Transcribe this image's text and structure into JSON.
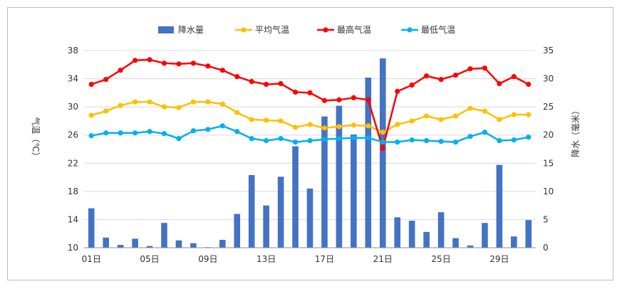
{
  "chart_data": {
    "type": "bar+line",
    "title": "",
    "days": [
      "01日",
      "02日",
      "03日",
      "04日",
      "05日",
      "06日",
      "07日",
      "08日",
      "09日",
      "10日",
      "11日",
      "12日",
      "13日",
      "14日",
      "15日",
      "16日",
      "17日",
      "18日",
      "19日",
      "20日",
      "21日",
      "22日",
      "23日",
      "24日",
      "25日",
      "26日",
      "27日",
      "28日",
      "29日",
      "30日",
      "31日"
    ],
    "x_tick_labels": [
      "01日",
      "05日",
      "09日",
      "13日",
      "17日",
      "21日",
      "25日",
      "29日"
    ],
    "ylabel_left": "气温（℃）",
    "ylabel_right": "降水（毫米）",
    "ylim_left": [
      10,
      38
    ],
    "yticks_left": [
      "10",
      "14",
      "18",
      "22",
      "26",
      "30",
      "34",
      "38"
    ],
    "ylim_right": [
      0,
      35
    ],
    "yticks_right": [
      "0",
      "5",
      "10",
      "15",
      "20",
      "25",
      "30",
      "35"
    ],
    "legend_position": "top",
    "series": [
      {
        "name": "降水量",
        "kind": "bar",
        "axis": "right",
        "color": "#4472C4",
        "values": [
          7.0,
          1.8,
          0.5,
          1.6,
          0.3,
          4.4,
          1.3,
          0.8,
          0.1,
          1.4,
          6.0,
          12.9,
          7.5,
          12.6,
          18.0,
          10.5,
          23.3,
          25.2,
          20.1,
          30.2,
          33.6,
          5.4,
          4.8,
          2.8,
          6.3,
          1.7,
          0.4,
          4.4,
          14.7,
          2.0,
          4.9
        ]
      },
      {
        "name": "平均气温",
        "kind": "line",
        "axis": "left",
        "color": "#FFC000",
        "values": [
          28.8,
          29.4,
          30.2,
          30.7,
          30.7,
          30.0,
          29.9,
          30.7,
          30.7,
          30.4,
          29.2,
          28.2,
          28.1,
          28.0,
          27.1,
          27.5,
          27.0,
          27.2,
          27.4,
          27.3,
          26.4,
          27.5,
          28.0,
          28.7,
          28.2,
          28.7,
          29.8,
          29.4,
          28.2,
          28.9,
          28.9
        ]
      },
      {
        "name": "最高气温",
        "kind": "line",
        "axis": "left",
        "color": "#FF0000",
        "values": [
          33.2,
          33.9,
          35.2,
          36.6,
          36.7,
          36.2,
          36.1,
          36.2,
          35.8,
          35.2,
          34.3,
          33.6,
          33.2,
          33.3,
          32.1,
          32.0,
          30.9,
          31.0,
          31.3,
          31.0,
          24.1,
          32.2,
          33.1,
          34.4,
          33.9,
          34.5,
          35.4,
          35.5,
          33.3,
          34.3,
          33.2
        ]
      },
      {
        "name": "最低气温",
        "kind": "line",
        "axis": "left",
        "color": "#00B0F0",
        "values": [
          25.9,
          26.3,
          26.3,
          26.3,
          26.5,
          26.2,
          25.5,
          26.6,
          26.8,
          27.3,
          26.5,
          25.5,
          25.2,
          25.5,
          25.0,
          25.2,
          25.4,
          25.5,
          25.6,
          25.6,
          25.0,
          25.0,
          25.3,
          25.2,
          25.1,
          25.0,
          25.8,
          26.4,
          25.2,
          25.3,
          25.7
        ]
      }
    ]
  }
}
